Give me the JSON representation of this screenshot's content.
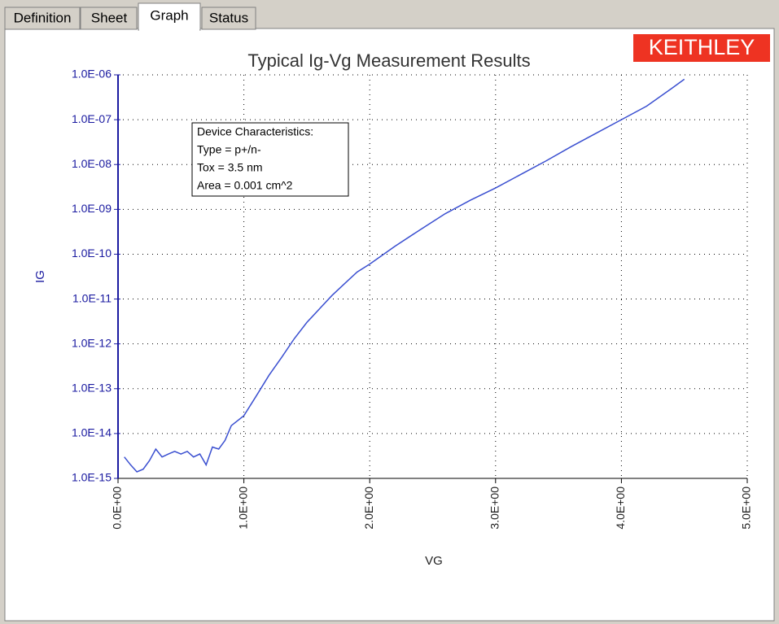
{
  "tabs": [
    "Definition",
    "Sheet",
    "Graph",
    "Status"
  ],
  "logo": "KEITHLEY",
  "chart_data": {
    "type": "line",
    "title": "Typical Ig-Vg Measurement Results",
    "xlabel": "VG",
    "ylabel": "IG",
    "annotation": [
      "Device Characteristics:",
      "Type = p+/n-",
      "Tox = 3.5 nm",
      "Area = 0.001 cm^2"
    ],
    "x": [
      0.05,
      0.1,
      0.15,
      0.2,
      0.25,
      0.3,
      0.35,
      0.4,
      0.45,
      0.5,
      0.55,
      0.6,
      0.65,
      0.7,
      0.75,
      0.8,
      0.85,
      0.9,
      1.0,
      1.1,
      1.2,
      1.3,
      1.4,
      1.5,
      1.6,
      1.7,
      1.8,
      1.9,
      2.0,
      2.2,
      2.4,
      2.6,
      2.8,
      3.0,
      3.2,
      3.4,
      3.6,
      3.8,
      4.0,
      4.2,
      4.4,
      4.5
    ],
    "series": [
      {
        "name": "IG",
        "color": "#3a4fd0",
        "values": [
          3e-15,
          2e-15,
          1.4e-15,
          1.6e-15,
          2.5e-15,
          4.5e-15,
          3e-15,
          3.5e-15,
          4e-15,
          3.5e-15,
          4e-15,
          3e-15,
          3.5e-15,
          2e-15,
          5e-15,
          4.5e-15,
          7e-15,
          1.5e-14,
          2.5e-14,
          7e-14,
          2e-13,
          5e-13,
          1.3e-12,
          3e-12,
          6e-12,
          1.2e-11,
          2.2e-11,
          4e-11,
          6e-11,
          1.5e-10,
          3.5e-10,
          8e-10,
          1.6e-09,
          3e-09,
          6e-09,
          1.2e-08,
          2.5e-08,
          5e-08,
          1e-07,
          2e-07,
          5e-07,
          8e-07
        ]
      }
    ],
    "xlim": [
      0,
      5
    ],
    "xticks": [
      {
        "value": 0,
        "label": "0.0E+00"
      },
      {
        "value": 1,
        "label": "1.0E+00"
      },
      {
        "value": 2,
        "label": "2.0E+00"
      },
      {
        "value": 3,
        "label": "3.0E+00"
      },
      {
        "value": 4,
        "label": "4.0E+00"
      },
      {
        "value": 5,
        "label": "5.0E+00"
      }
    ],
    "ylim": [
      1e-15,
      1e-06
    ],
    "yticks": [
      {
        "value": 1e-15,
        "label": "1.0E-15"
      },
      {
        "value": 1e-14,
        "label": "1.0E-14"
      },
      {
        "value": 1e-13,
        "label": "1.0E-13"
      },
      {
        "value": 1e-12,
        "label": "1.0E-12"
      },
      {
        "value": 1e-11,
        "label": "1.0E-11"
      },
      {
        "value": 1e-10,
        "label": "1.0E-10"
      },
      {
        "value": 1e-09,
        "label": "1.0E-09"
      },
      {
        "value": 1e-08,
        "label": "1.0E-08"
      },
      {
        "value": 1e-07,
        "label": "1.0E-07"
      },
      {
        "value": 1e-06,
        "label": "1.0E-06"
      }
    ],
    "log_y": true,
    "grid": true
  }
}
